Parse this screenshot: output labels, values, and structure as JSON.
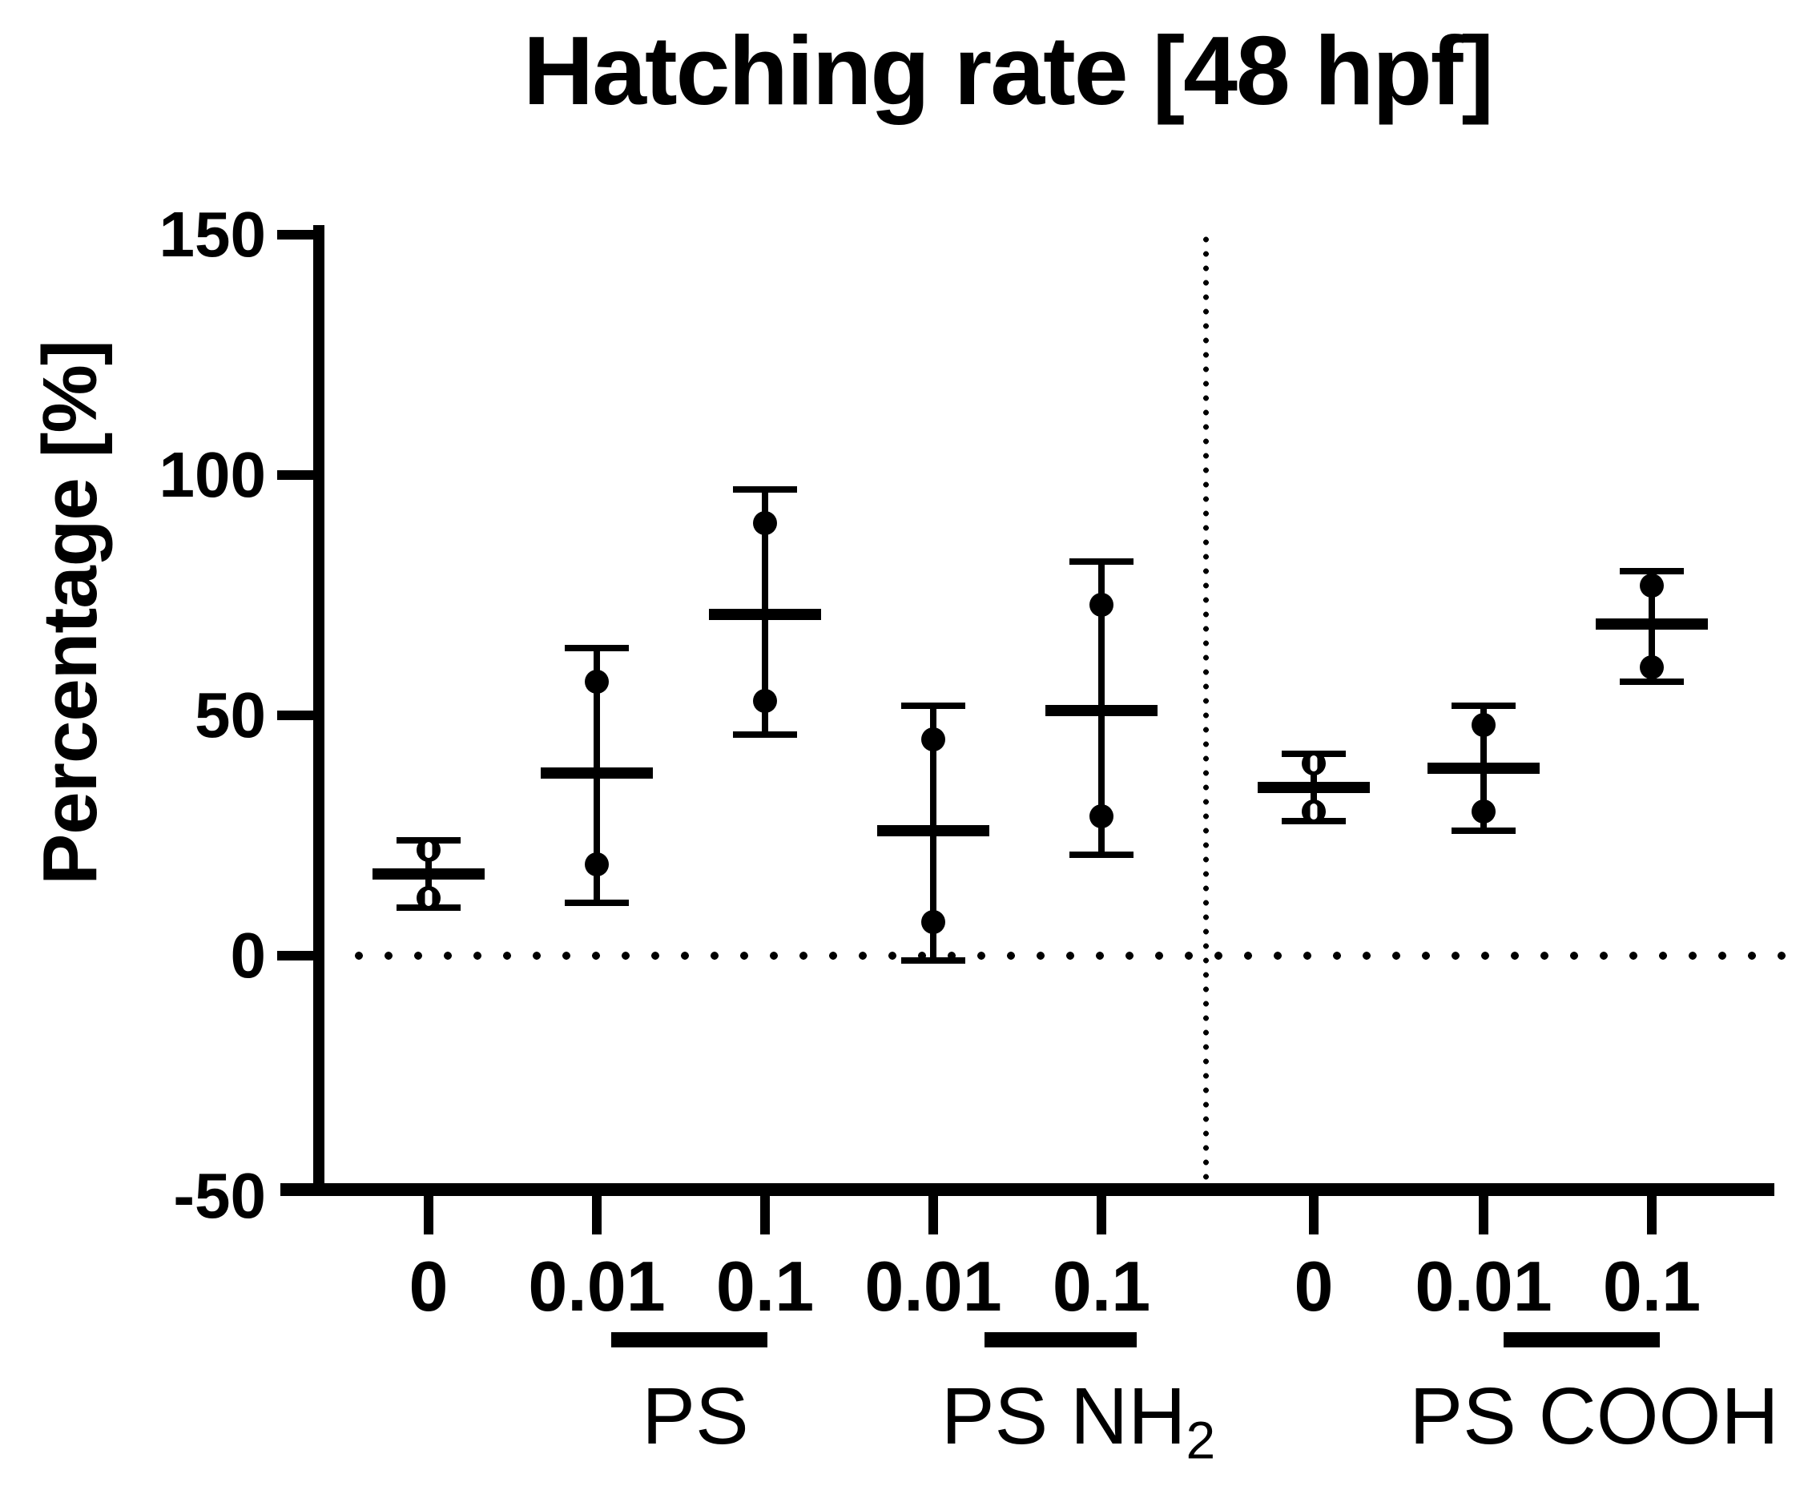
{
  "title": "Hatching rate [48 hpf]",
  "colors": {
    "ink": "#000000",
    "background": "#ffffff"
  },
  "chart_data": {
    "type": "scatter",
    "title": "Hatching rate [48 hpf]",
    "ylabel": "Percentage [%]",
    "xlabel": "",
    "ylim": [
      -50,
      150
    ],
    "yticks": [
      150,
      100,
      50,
      0,
      -50
    ],
    "grid": false,
    "zero_baseline_style": "dotted",
    "section_divider_style": "dotted",
    "categories": [
      "0",
      "0.01",
      "0.1",
      "0.01",
      "0.1",
      "0",
      "0.01",
      "0.1"
    ],
    "groups": [
      {
        "dose": "0",
        "section": "PS",
        "points": [
          22,
          12
        ],
        "mean": 17,
        "err_lo": 10,
        "err_hi": 24,
        "marker": "circle-slit"
      },
      {
        "dose": "0.01",
        "section": "PS",
        "points": [
          57,
          19
        ],
        "mean": 38,
        "err_lo": 11,
        "err_hi": 64,
        "marker": "circle"
      },
      {
        "dose": "0.1",
        "section": "PS",
        "points": [
          90,
          53
        ],
        "mean": 71,
        "err_lo": 46,
        "err_hi": 97,
        "marker": "circle"
      },
      {
        "dose": "0.01",
        "section": "PS NH2",
        "points": [
          45,
          7
        ],
        "mean": 26,
        "err_lo": -1,
        "err_hi": 52,
        "marker": "circle"
      },
      {
        "dose": "0.1",
        "section": "PS NH2",
        "points": [
          73,
          29
        ],
        "mean": 51,
        "err_lo": 21,
        "err_hi": 82,
        "marker": "circle"
      },
      {
        "dose": "0",
        "section": "PS COOH",
        "points": [
          40,
          30
        ],
        "mean": 35,
        "err_lo": 28,
        "err_hi": 42,
        "marker": "circle-slit"
      },
      {
        "dose": "0.01",
        "section": "PS COOH",
        "points": [
          48,
          30
        ],
        "mean": 39,
        "err_lo": 26,
        "err_hi": 52,
        "marker": "circle"
      },
      {
        "dose": "0.1",
        "section": "PS COOH",
        "points": [
          77,
          60
        ],
        "mean": 69,
        "err_lo": 57,
        "err_hi": 80,
        "marker": "circle"
      }
    ],
    "section_labels": [
      {
        "main": "PS",
        "sub": ""
      },
      {
        "main": "PS NH",
        "sub": "2"
      },
      {
        "main": "PS COOH",
        "sub": ""
      }
    ],
    "legend": null
  }
}
